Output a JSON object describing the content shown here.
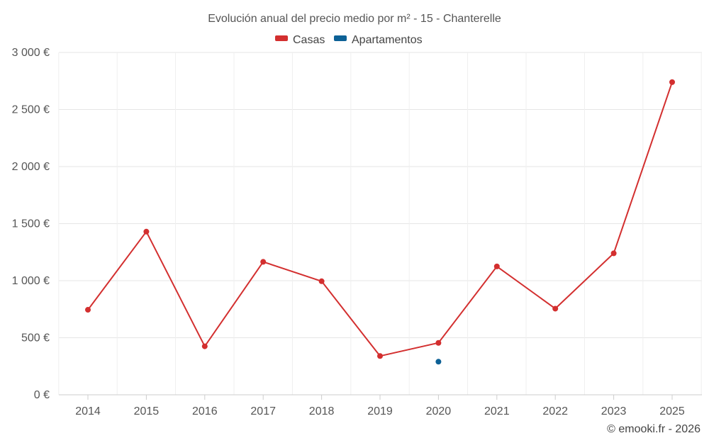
{
  "chart_data": {
    "type": "line",
    "title": "Evolución anual del precio medio por m² - 15 - Chanterelle",
    "categories": [
      "2014",
      "2015",
      "2016",
      "2017",
      "2018",
      "2019",
      "2020",
      "2021",
      "2022",
      "2023",
      "2025"
    ],
    "y_ticks": [
      "0 €",
      "500 €",
      "1 000 €",
      "1 500 €",
      "2 000 €",
      "2 500 €",
      "3 000 €"
    ],
    "ylim": [
      0,
      3000
    ],
    "grid": true,
    "legend": "top-center",
    "series": [
      {
        "name": "Casas",
        "color": "#d32f2f",
        "values": [
          745,
          1430,
          425,
          1165,
          995,
          340,
          455,
          1125,
          755,
          1240,
          2740
        ]
      },
      {
        "name": "Apartamentos",
        "color": "#0d6196",
        "values": [
          null,
          null,
          null,
          null,
          null,
          null,
          290,
          null,
          null,
          null,
          null
        ]
      }
    ]
  },
  "credit": "© emooki.fr - 2026"
}
